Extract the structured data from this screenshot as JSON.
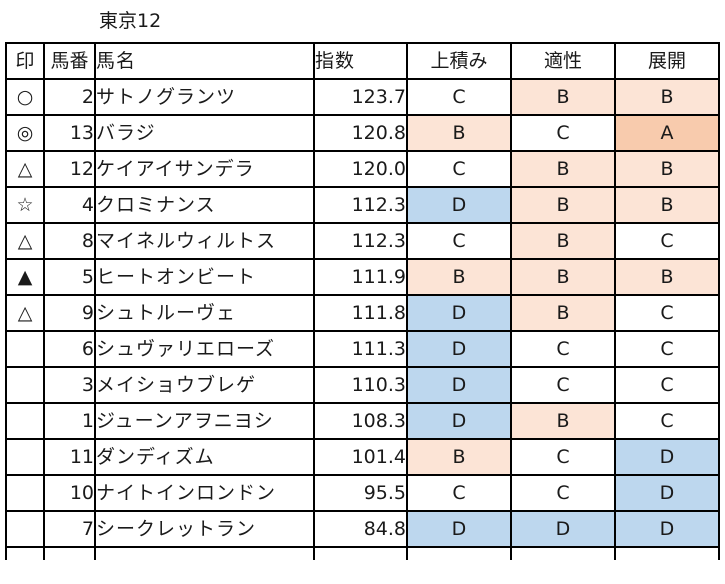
{
  "title": "東京12",
  "headers": {
    "mark": "印",
    "number": "馬番",
    "name": "馬名",
    "index": "指数",
    "late_gain": "上積み",
    "aptitude": "適性",
    "pace": "展開"
  },
  "grade_colors": {
    "A": "#f8cbad",
    "B": "#fce4d6",
    "C": "#ffffff",
    "D": "#bdd7ee"
  },
  "rows": [
    {
      "mark": "○",
      "number": "2",
      "name": "サトノグランツ",
      "index": "123.7",
      "late_gain": "C",
      "aptitude": "B",
      "pace": "B"
    },
    {
      "mark": "◎",
      "number": "13",
      "name": "バラジ",
      "index": "120.8",
      "late_gain": "B",
      "aptitude": "C",
      "pace": "A"
    },
    {
      "mark": "△",
      "number": "12",
      "name": "ケイアイサンデラ",
      "index": "120.0",
      "late_gain": "C",
      "aptitude": "B",
      "pace": "B"
    },
    {
      "mark": "☆",
      "number": "4",
      "name": "クロミナンス",
      "index": "112.3",
      "late_gain": "D",
      "aptitude": "B",
      "pace": "B"
    },
    {
      "mark": "△",
      "number": "8",
      "name": "マイネルウィルトス",
      "index": "112.3",
      "late_gain": "C",
      "aptitude": "B",
      "pace": "C"
    },
    {
      "mark": "▲",
      "number": "5",
      "name": "ヒートオンビート",
      "index": "111.9",
      "late_gain": "B",
      "aptitude": "B",
      "pace": "B"
    },
    {
      "mark": "△",
      "number": "9",
      "name": "シュトルーヴェ",
      "index": "111.8",
      "late_gain": "D",
      "aptitude": "B",
      "pace": "C"
    },
    {
      "mark": "",
      "number": "6",
      "name": "シュヴァリエローズ",
      "index": "111.3",
      "late_gain": "D",
      "aptitude": "C",
      "pace": "C"
    },
    {
      "mark": "",
      "number": "3",
      "name": "メイショウブレゲ",
      "index": "110.3",
      "late_gain": "D",
      "aptitude": "C",
      "pace": "C"
    },
    {
      "mark": "",
      "number": "1",
      "name": "ジューンアヲニヨシ",
      "index": "108.3",
      "late_gain": "D",
      "aptitude": "B",
      "pace": "C"
    },
    {
      "mark": "",
      "number": "11",
      "name": "ダンディズム",
      "index": "101.4",
      "late_gain": "B",
      "aptitude": "C",
      "pace": "D"
    },
    {
      "mark": "",
      "number": "10",
      "name": "ナイトインロンドン",
      "index": "95.5",
      "late_gain": "C",
      "aptitude": "C",
      "pace": "D"
    },
    {
      "mark": "",
      "number": "7",
      "name": "シークレットラン",
      "index": "84.8",
      "late_gain": "D",
      "aptitude": "D",
      "pace": "D"
    }
  ]
}
